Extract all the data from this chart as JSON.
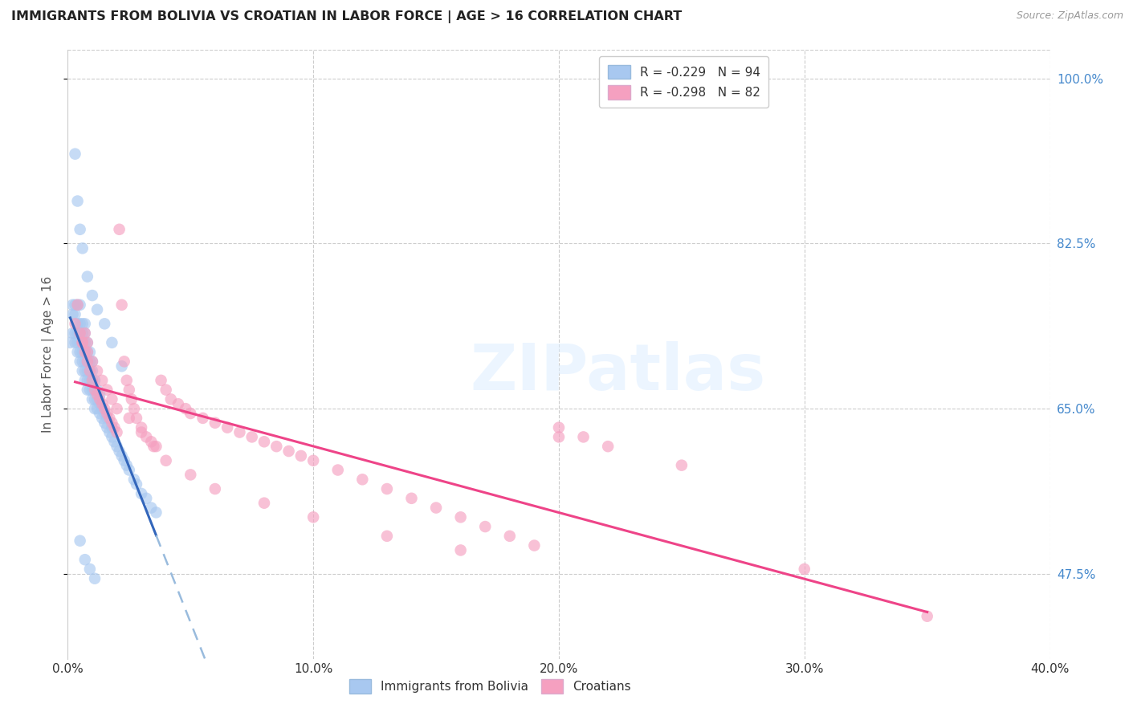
{
  "title": "IMMIGRANTS FROM BOLIVIA VS CROATIAN IN LABOR FORCE | AGE > 16 CORRELATION CHART",
  "source": "Source: ZipAtlas.com",
  "ylabel_label": "In Labor Force | Age > 16",
  "xmin": 0.0,
  "xmax": 0.4,
  "ymin": 0.385,
  "ymax": 1.03,
  "legend_bolivia": "R = -0.229   N = 94",
  "legend_croatian": "R = -0.298   N = 82",
  "blue_color": "#a8c8f0",
  "pink_color": "#f5a0c0",
  "blue_line_color": "#3366bb",
  "pink_line_color": "#ee4488",
  "blue_dash_color": "#99bbdd",
  "watermark": "ZIPatlas",
  "yticks": [
    0.475,
    0.65,
    0.825,
    1.0
  ],
  "ytick_labels": [
    "47.5%",
    "65.0%",
    "82.5%",
    "100.0%"
  ],
  "xticks": [
    0.0,
    0.1,
    0.2,
    0.3,
    0.4
  ],
  "xtick_labels": [
    "0.0%",
    "10.0%",
    "20.0%",
    "30.0%",
    "40.0%"
  ],
  "bolivia_x": [
    0.001,
    0.002,
    0.002,
    0.002,
    0.003,
    0.003,
    0.003,
    0.003,
    0.004,
    0.004,
    0.004,
    0.004,
    0.004,
    0.005,
    0.005,
    0.005,
    0.005,
    0.005,
    0.005,
    0.006,
    0.006,
    0.006,
    0.006,
    0.006,
    0.006,
    0.007,
    0.007,
    0.007,
    0.007,
    0.007,
    0.007,
    0.007,
    0.008,
    0.008,
    0.008,
    0.008,
    0.008,
    0.008,
    0.009,
    0.009,
    0.009,
    0.009,
    0.009,
    0.01,
    0.01,
    0.01,
    0.01,
    0.01,
    0.011,
    0.011,
    0.011,
    0.011,
    0.012,
    0.012,
    0.012,
    0.013,
    0.013,
    0.013,
    0.014,
    0.014,
    0.015,
    0.015,
    0.016,
    0.016,
    0.017,
    0.018,
    0.018,
    0.019,
    0.02,
    0.021,
    0.022,
    0.023,
    0.024,
    0.025,
    0.027,
    0.028,
    0.03,
    0.032,
    0.034,
    0.036,
    0.003,
    0.004,
    0.005,
    0.006,
    0.008,
    0.01,
    0.012,
    0.015,
    0.018,
    0.022,
    0.005,
    0.007,
    0.009,
    0.011
  ],
  "bolivia_y": [
    0.72,
    0.73,
    0.75,
    0.76,
    0.72,
    0.73,
    0.75,
    0.76,
    0.71,
    0.72,
    0.73,
    0.74,
    0.76,
    0.7,
    0.71,
    0.72,
    0.73,
    0.74,
    0.76,
    0.69,
    0.7,
    0.71,
    0.72,
    0.73,
    0.74,
    0.68,
    0.69,
    0.7,
    0.71,
    0.72,
    0.73,
    0.74,
    0.67,
    0.68,
    0.69,
    0.7,
    0.71,
    0.72,
    0.67,
    0.68,
    0.69,
    0.7,
    0.71,
    0.66,
    0.67,
    0.68,
    0.69,
    0.7,
    0.65,
    0.66,
    0.67,
    0.68,
    0.65,
    0.66,
    0.67,
    0.645,
    0.655,
    0.665,
    0.64,
    0.65,
    0.635,
    0.645,
    0.63,
    0.64,
    0.625,
    0.62,
    0.63,
    0.615,
    0.61,
    0.605,
    0.6,
    0.595,
    0.59,
    0.585,
    0.575,
    0.57,
    0.56,
    0.555,
    0.545,
    0.54,
    0.92,
    0.87,
    0.84,
    0.82,
    0.79,
    0.77,
    0.755,
    0.74,
    0.72,
    0.695,
    0.51,
    0.49,
    0.48,
    0.47
  ],
  "croatian_x": [
    0.003,
    0.004,
    0.005,
    0.006,
    0.007,
    0.007,
    0.008,
    0.008,
    0.009,
    0.01,
    0.011,
    0.012,
    0.013,
    0.014,
    0.015,
    0.016,
    0.017,
    0.018,
    0.019,
    0.02,
    0.021,
    0.022,
    0.023,
    0.024,
    0.025,
    0.026,
    0.027,
    0.028,
    0.03,
    0.032,
    0.034,
    0.036,
    0.038,
    0.04,
    0.042,
    0.045,
    0.048,
    0.05,
    0.055,
    0.06,
    0.065,
    0.07,
    0.075,
    0.08,
    0.085,
    0.09,
    0.095,
    0.1,
    0.11,
    0.12,
    0.13,
    0.14,
    0.15,
    0.16,
    0.17,
    0.18,
    0.19,
    0.2,
    0.21,
    0.22,
    0.006,
    0.008,
    0.01,
    0.012,
    0.014,
    0.016,
    0.018,
    0.02,
    0.025,
    0.03,
    0.035,
    0.04,
    0.05,
    0.06,
    0.08,
    0.1,
    0.13,
    0.16,
    0.2,
    0.25,
    0.3,
    0.35
  ],
  "croatian_y": [
    0.74,
    0.76,
    0.73,
    0.72,
    0.71,
    0.73,
    0.7,
    0.72,
    0.69,
    0.68,
    0.67,
    0.665,
    0.66,
    0.655,
    0.65,
    0.645,
    0.64,
    0.635,
    0.63,
    0.625,
    0.84,
    0.76,
    0.7,
    0.68,
    0.67,
    0.66,
    0.65,
    0.64,
    0.63,
    0.62,
    0.615,
    0.61,
    0.68,
    0.67,
    0.66,
    0.655,
    0.65,
    0.645,
    0.64,
    0.635,
    0.63,
    0.625,
    0.62,
    0.615,
    0.61,
    0.605,
    0.6,
    0.595,
    0.585,
    0.575,
    0.565,
    0.555,
    0.545,
    0.535,
    0.525,
    0.515,
    0.505,
    0.63,
    0.62,
    0.61,
    0.72,
    0.71,
    0.7,
    0.69,
    0.68,
    0.67,
    0.66,
    0.65,
    0.64,
    0.625,
    0.61,
    0.595,
    0.58,
    0.565,
    0.55,
    0.535,
    0.515,
    0.5,
    0.62,
    0.59,
    0.48,
    0.43
  ]
}
